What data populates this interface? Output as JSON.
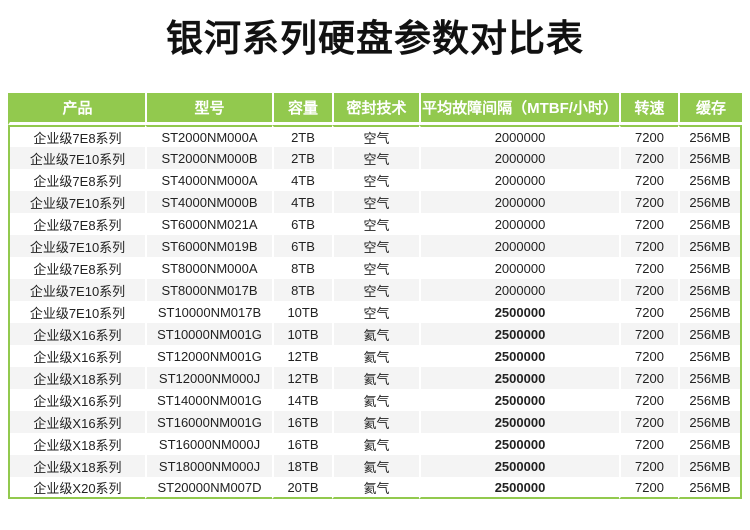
{
  "page": {
    "title": "银河系列硬盘参数对比表"
  },
  "colors": {
    "header_green": "#92c94e",
    "row_stripe_gray": "#f4f4f4",
    "header_text": "#ffffff",
    "body_text": "#222222"
  },
  "table": {
    "columns": [
      {
        "key": "product",
        "label": "产品"
      },
      {
        "key": "model",
        "label": "型号"
      },
      {
        "key": "capacity",
        "label": "容量"
      },
      {
        "key": "seal",
        "label": "密封技术"
      },
      {
        "key": "mtbf",
        "label": "平均故障间隔（MTBF/小时）"
      },
      {
        "key": "speed",
        "label": "转速"
      },
      {
        "key": "cache",
        "label": "缓存"
      }
    ],
    "rows": [
      {
        "product": "企业级7E8系列",
        "model": "ST2000NM000A",
        "capacity": "2TB",
        "seal": "空气",
        "mtbf": "2000000",
        "mtbf_bold": false,
        "speed": "7200",
        "cache": "256MB"
      },
      {
        "product": "企业级7E10系列",
        "model": "ST2000NM000B",
        "capacity": "2TB",
        "seal": "空气",
        "mtbf": "2000000",
        "mtbf_bold": false,
        "speed": "7200",
        "cache": "256MB"
      },
      {
        "product": "企业级7E8系列",
        "model": "ST4000NM000A",
        "capacity": "4TB",
        "seal": "空气",
        "mtbf": "2000000",
        "mtbf_bold": false,
        "speed": "7200",
        "cache": "256MB"
      },
      {
        "product": "企业级7E10系列",
        "model": "ST4000NM000B",
        "capacity": "4TB",
        "seal": "空气",
        "mtbf": "2000000",
        "mtbf_bold": false,
        "speed": "7200",
        "cache": "256MB"
      },
      {
        "product": "企业级7E8系列",
        "model": "ST6000NM021A",
        "capacity": "6TB",
        "seal": "空气",
        "mtbf": "2000000",
        "mtbf_bold": false,
        "speed": "7200",
        "cache": "256MB"
      },
      {
        "product": "企业级7E10系列",
        "model": "ST6000NM019B",
        "capacity": "6TB",
        "seal": "空气",
        "mtbf": "2000000",
        "mtbf_bold": false,
        "speed": "7200",
        "cache": "256MB"
      },
      {
        "product": "企业级7E8系列",
        "model": "ST8000NM000A",
        "capacity": "8TB",
        "seal": "空气",
        "mtbf": "2000000",
        "mtbf_bold": false,
        "speed": "7200",
        "cache": "256MB"
      },
      {
        "product": "企业级7E10系列",
        "model": "ST8000NM017B",
        "capacity": "8TB",
        "seal": "空气",
        "mtbf": "2000000",
        "mtbf_bold": false,
        "speed": "7200",
        "cache": "256MB"
      },
      {
        "product": "企业级7E10系列",
        "model": "ST10000NM017B",
        "capacity": "10TB",
        "seal": "空气",
        "mtbf": "2500000",
        "mtbf_bold": true,
        "speed": "7200",
        "cache": "256MB"
      },
      {
        "product": "企业级X16系列",
        "model": "ST10000NM001G",
        "capacity": "10TB",
        "seal": "氦气",
        "mtbf": "2500000",
        "mtbf_bold": true,
        "speed": "7200",
        "cache": "256MB"
      },
      {
        "product": "企业级X16系列",
        "model": "ST12000NM001G",
        "capacity": "12TB",
        "seal": "氦气",
        "mtbf": "2500000",
        "mtbf_bold": true,
        "speed": "7200",
        "cache": "256MB"
      },
      {
        "product": "企业级X18系列",
        "model": "ST12000NM000J",
        "capacity": "12TB",
        "seal": "氦气",
        "mtbf": "2500000",
        "mtbf_bold": true,
        "speed": "7200",
        "cache": "256MB"
      },
      {
        "product": "企业级X16系列",
        "model": "ST14000NM001G",
        "capacity": "14TB",
        "seal": "氦气",
        "mtbf": "2500000",
        "mtbf_bold": true,
        "speed": "7200",
        "cache": "256MB"
      },
      {
        "product": "企业级X16系列",
        "model": "ST16000NM001G",
        "capacity": "16TB",
        "seal": "氦气",
        "mtbf": "2500000",
        "mtbf_bold": true,
        "speed": "7200",
        "cache": "256MB"
      },
      {
        "product": "企业级X18系列",
        "model": "ST16000NM000J",
        "capacity": "16TB",
        "seal": "氦气",
        "mtbf": "2500000",
        "mtbf_bold": true,
        "speed": "7200",
        "cache": "256MB"
      },
      {
        "product": "企业级X18系列",
        "model": "ST18000NM000J",
        "capacity": "18TB",
        "seal": "氦气",
        "mtbf": "2500000",
        "mtbf_bold": true,
        "speed": "7200",
        "cache": "256MB"
      },
      {
        "product": "企业级X20系列",
        "model": "ST20000NM007D",
        "capacity": "20TB",
        "seal": "氦气",
        "mtbf": "2500000",
        "mtbf_bold": true,
        "speed": "7200",
        "cache": "256MB"
      }
    ]
  }
}
